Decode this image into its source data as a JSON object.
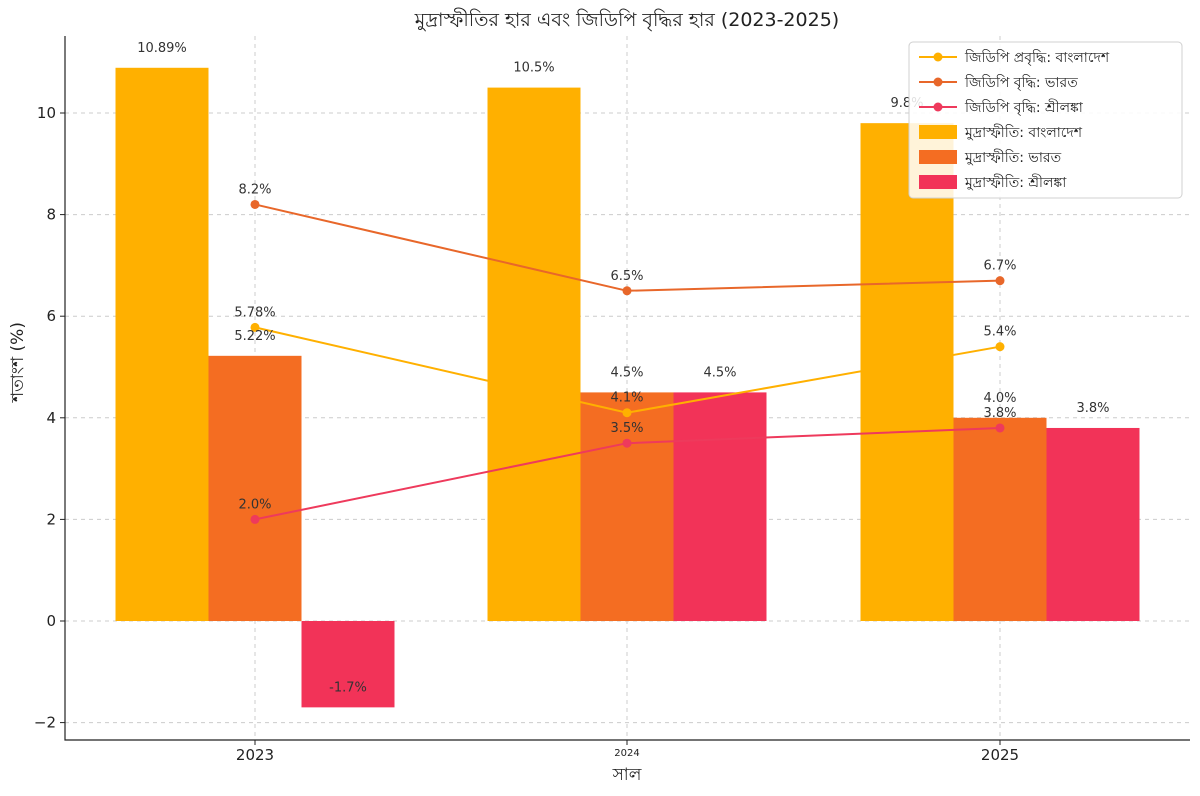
{
  "chart_data": {
    "type": "bar",
    "title": "মুদ্রাস্ফীতির হার এবং জিডিপি বৃদ্ধির হার (2023-2025)",
    "xlabel": "সাল",
    "ylabel": "শতাংশ (%)",
    "ylim": [
      -2.3,
      11.5
    ],
    "yticks": [
      -2,
      0,
      2,
      4,
      6,
      8,
      10
    ],
    "ytick_labels": [
      "−2",
      "0",
      "2",
      "4",
      "6",
      "8",
      "10"
    ],
    "categories": [
      "2023",
      "2024",
      "2025"
    ],
    "grid": true,
    "legend_position": "top-right",
    "bar_series": [
      {
        "name": "মুদ্রাস্ফীতি: বাংলাদেশ",
        "color": "#FFB000",
        "values": [
          10.89,
          10.5,
          9.8
        ],
        "labels": [
          "10.89%",
          "10.5%",
          "9.8%"
        ]
      },
      {
        "name": "মুদ্রাস্ফীতি: ভারত",
        "color": "#F46D22",
        "values": [
          5.22,
          4.5,
          4.0
        ],
        "labels": [
          "5.22%",
          "4.5%",
          "4.0%"
        ]
      },
      {
        "name": "মুদ্রাস্ফীতি: শ্রীলঙ্কা",
        "color": "#F23358",
        "values": [
          -1.7,
          4.5,
          3.8
        ],
        "labels": [
          "-1.7%",
          "4.5%",
          "3.8%"
        ]
      }
    ],
    "line_series": [
      {
        "name": "জিডিপি প্রবৃদ্ধি: বাংলাদেশ",
        "color": "#FFB000",
        "values": [
          5.78,
          4.1,
          5.4
        ],
        "labels": [
          "5.78%",
          "4.1%",
          "5.4%"
        ]
      },
      {
        "name": "জিডিপি বৃদ্ধি: ভারত",
        "color": "#E8672A",
        "values": [
          8.2,
          6.5,
          6.7
        ],
        "labels": [
          "8.2%",
          "6.5%",
          "6.7%"
        ]
      },
      {
        "name": "জিডিপি বৃদ্ধি: শ্রীলঙ্কা",
        "color": "#EE3A5C",
        "values": [
          2.0,
          3.5,
          3.8
        ],
        "labels": [
          "2.0%",
          "3.5%",
          "3.8%"
        ]
      }
    ],
    "legend_order": [
      "line:0",
      "line:1",
      "line:2",
      "bar:0",
      "bar:1",
      "bar:2"
    ]
  }
}
